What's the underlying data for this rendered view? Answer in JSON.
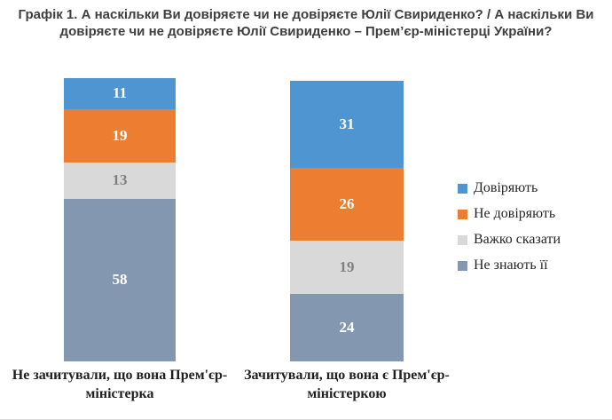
{
  "title": "Графік 1. А наскільки Ви довіряєте чи не довіряєте Юлії Свириденко? / А наскільки Ви довіряєте чи не довіряєте Юлії Свириденко – Прем’єр-міністерці України?",
  "chart_data": {
    "type": "bar",
    "variant": "stacked-column",
    "categories": [
      "Не зачитували, що вона Прем'єр-міністерка",
      "Зачитували, що вона є Прем'єр-міністеркою"
    ],
    "series": [
      {
        "name": "Довіряють",
        "values": [
          11,
          31
        ],
        "color": "#4E95D1",
        "label_color": "#FFFFFF"
      },
      {
        "name": "Не довіряють",
        "values": [
          19,
          26
        ],
        "color": "#ED7D31",
        "label_color": "#FFFFFF"
      },
      {
        "name": "Важко сказати",
        "values": [
          13,
          19
        ],
        "color": "#D9D9D9",
        "label_color": "#808080"
      },
      {
        "name": "Не знають її",
        "values": [
          58,
          24
        ],
        "color": "#8497B0",
        "label_color": "#FFFFFF"
      }
    ],
    "value_axis": {
      "min": 0,
      "max": 100,
      "visible": false
    },
    "grid": false,
    "legend_position": "right",
    "data_labels": true
  }
}
